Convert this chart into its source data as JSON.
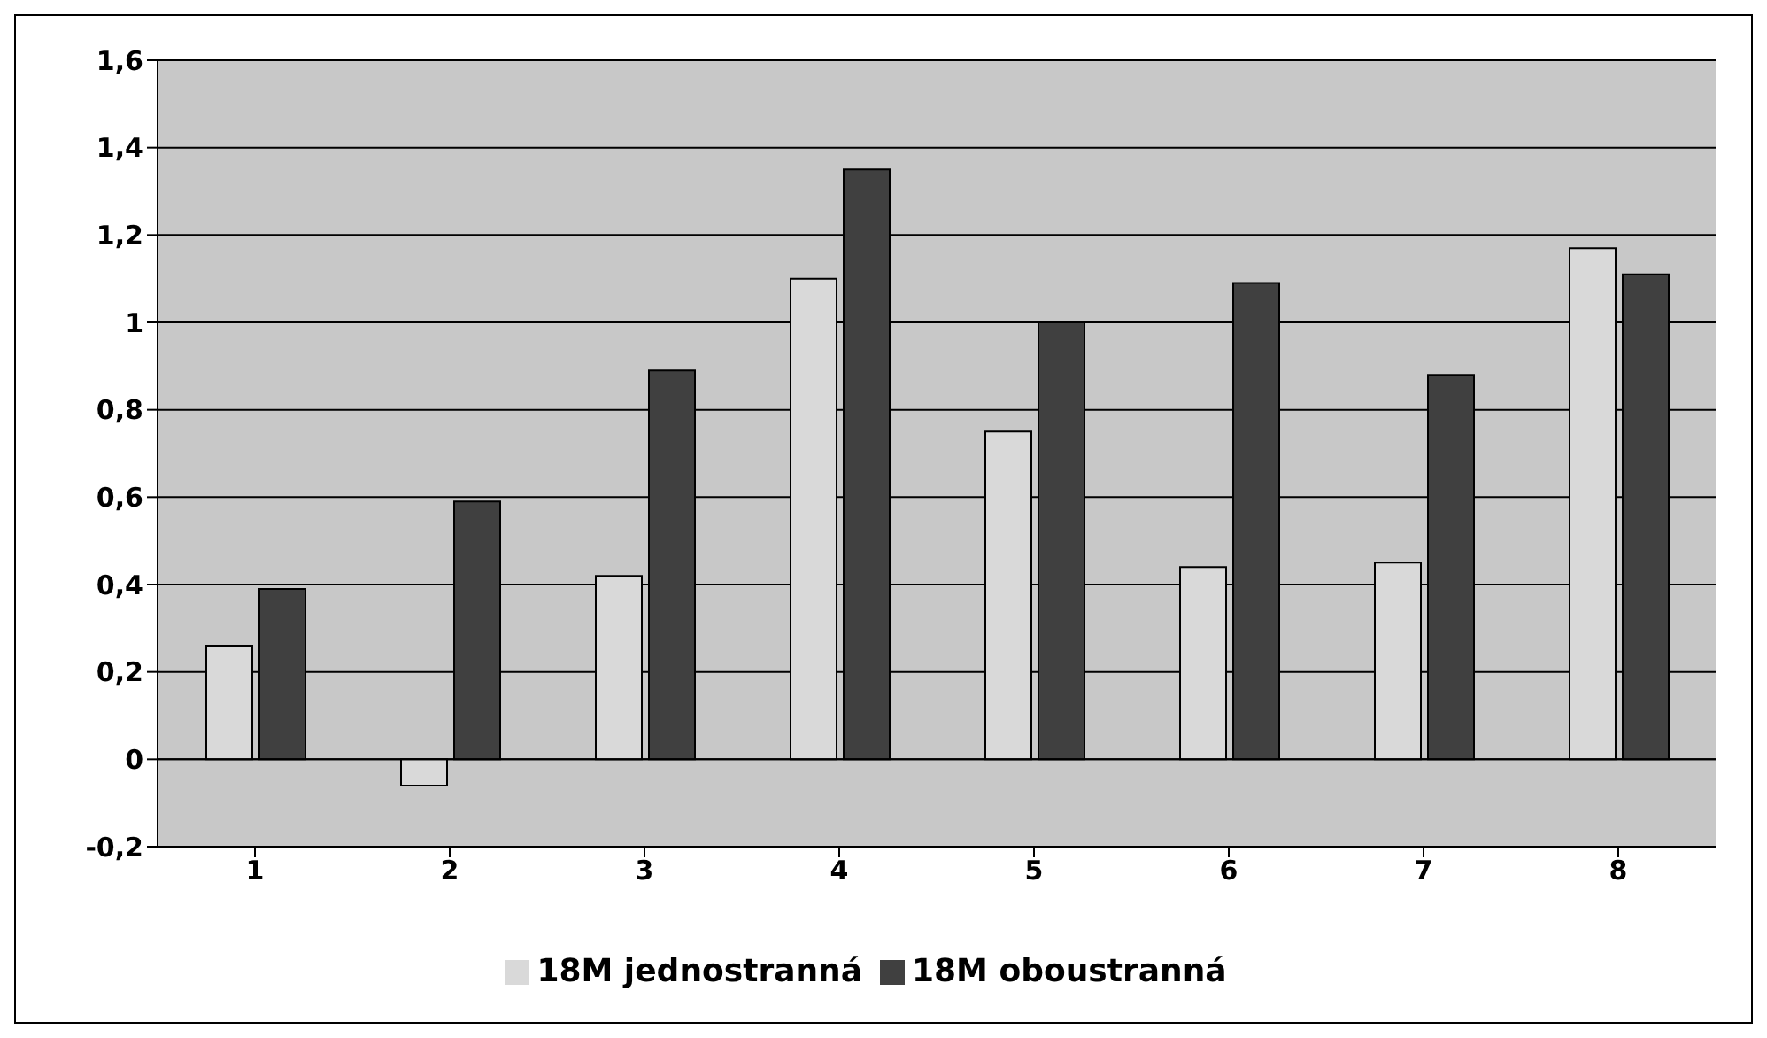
{
  "chart_data": {
    "type": "bar",
    "categories": [
      "1",
      "2",
      "3",
      "4",
      "5",
      "6",
      "7",
      "8"
    ],
    "series": [
      {
        "name": "18M jednostranná",
        "color": "#d9d9d9",
        "values": [
          0.26,
          -0.06,
          0.42,
          1.1,
          0.75,
          0.44,
          0.45,
          1.17
        ]
      },
      {
        "name": "18M oboustranná",
        "color": "#404040",
        "values": [
          0.39,
          0.59,
          0.89,
          1.35,
          1.0,
          1.09,
          0.88,
          1.11
        ]
      }
    ],
    "ylim": [
      -0.2,
      1.6
    ],
    "yticks": [
      {
        "value": -0.2,
        "label": "-0,2"
      },
      0,
      {
        "value": 0.2,
        "label": "0,2"
      },
      {
        "value": 0.4,
        "label": "0,4"
      },
      {
        "value": 0.6,
        "label": "0,6"
      },
      {
        "value": 0.8,
        "label": "0,8"
      },
      1,
      {
        "value": 1.2,
        "label": "1,2"
      },
      {
        "value": 1.4,
        "label": "1,4"
      },
      {
        "value": 1.6,
        "label": "1,6"
      }
    ],
    "grid": "y",
    "legend": "bottom"
  }
}
